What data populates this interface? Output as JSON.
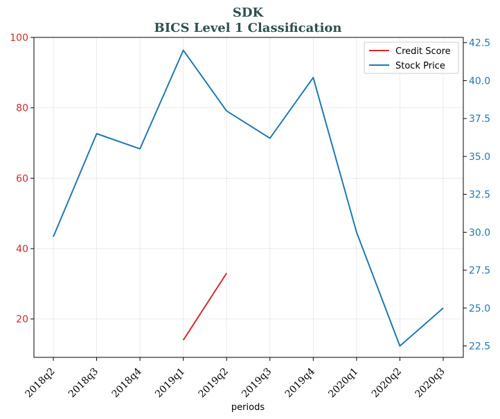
{
  "chart_data": {
    "type": "line",
    "title": "SDK",
    "subtitle": "BICS Level 1 Classification",
    "xlabel": "periods",
    "categories": [
      "2018q2",
      "2018q3",
      "2018q4",
      "2019q1",
      "2019q2",
      "2019q3",
      "2019q4",
      "2020q1",
      "2020q2",
      "2020q3"
    ],
    "y_left": {
      "ylim": [
        9.1,
        100
      ],
      "ticks": [
        20,
        40,
        60,
        80,
        100
      ],
      "color": "#d62728"
    },
    "y_right": {
      "ylim": [
        21.75,
        42.85
      ],
      "ticks": [
        22.5,
        25.0,
        27.5,
        30.0,
        32.5,
        35.0,
        37.5,
        40.0,
        42.5
      ],
      "tick_labels": [
        "22.5",
        "25.0",
        "27.5",
        "30.0",
        "32.5",
        "35.0",
        "37.5",
        "40.0",
        "42.5"
      ],
      "color": "#1f77b4"
    },
    "grid": true,
    "legend_position": "top-right",
    "series": [
      {
        "name": "Credit Score",
        "axis": "left",
        "color": "#d62728",
        "values": [
          null,
          null,
          null,
          14,
          33,
          null,
          null,
          null,
          null,
          null
        ]
      },
      {
        "name": "Stock Price",
        "axis": "right",
        "color": "#1f77b4",
        "values": [
          29.7,
          36.5,
          35.5,
          42.0,
          38.0,
          36.2,
          40.2,
          30.0,
          22.5,
          25.0
        ]
      }
    ]
  }
}
